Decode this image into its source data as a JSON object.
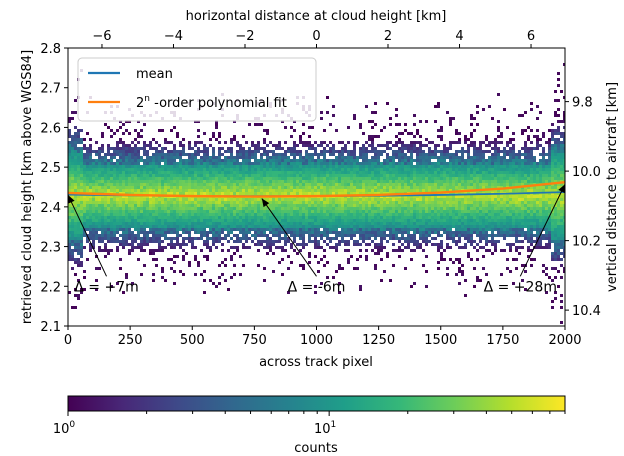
{
  "chart_data": {
    "type": "heatmap",
    "xlabel": "across track pixel",
    "ylabel": "retrieved cloud height [km above WGS84]",
    "top_xlabel": "horizontal distance at cloud height [km]",
    "right_ylabel": "vertical distance to aircraft [km]",
    "xlim": [
      0,
      2000
    ],
    "ylim": [
      2.1,
      2.8
    ],
    "top_xlim": [
      -6.95,
      6.95
    ],
    "x_ticks": [
      0,
      250,
      500,
      750,
      1000,
      1250,
      1500,
      1750,
      2000
    ],
    "y_ticks": [
      2.1,
      2.2,
      2.3,
      2.4,
      2.5,
      2.6,
      2.7,
      2.8
    ],
    "top_x_ticks": [
      -6,
      -4,
      -2,
      0,
      2,
      4,
      6
    ],
    "right_y_ticks": [
      "9.8",
      "10.0",
      "10.2",
      "10.4"
    ],
    "right_y_positions": [
      2.665,
      2.49,
      2.315,
      2.14
    ],
    "colorbar": {
      "label": "counts",
      "scale": "log",
      "range": [
        1,
        80
      ],
      "tick_labels": [
        {
          "text": "10",
          "exp": "0",
          "value": 1
        },
        {
          "text": "10",
          "exp": "1",
          "value": 10
        }
      ],
      "colors": [
        "#440154",
        "#482878",
        "#3e4a89",
        "#31688e",
        "#26828e",
        "#1f9e89",
        "#35b779",
        "#6dcd59",
        "#b4de2c",
        "#fde725"
      ]
    },
    "density": {
      "center_height": 2.428,
      "core_halfwidth": 0.08,
      "outer_halfwidth": 0.14
    },
    "series": [
      {
        "name": "mean",
        "color": "#1f77b4",
        "x": [
          0,
          250,
          500,
          750,
          1000,
          1250,
          1500,
          1750,
          2000
        ],
        "y": [
          2.431,
          2.429,
          2.427,
          2.427,
          2.427,
          2.428,
          2.43,
          2.433,
          2.437
        ]
      },
      {
        "name": "2n -order polynomial fit",
        "color": "#ff7f0e",
        "x": [
          0,
          250,
          500,
          750,
          1000,
          1250,
          1500,
          1750,
          2000
        ],
        "y": [
          2.435,
          2.43,
          2.427,
          2.426,
          2.427,
          2.43,
          2.436,
          2.446,
          2.462
        ]
      }
    ],
    "legend": {
      "placement": "top-left",
      "entries": [
        {
          "text": "mean",
          "sup": ""
        },
        {
          "text": "2",
          "sup": "n",
          "rest": " -order polynomial fit"
        }
      ]
    },
    "annotations": [
      {
        "text": "Δ = +7m",
        "arrow_from": [
          155,
          2.2
        ],
        "arrow_to": [
          0,
          2.435
        ]
      },
      {
        "text": "Δ = -6m",
        "arrow_from": [
          1000,
          2.2
        ],
        "arrow_to": [
          780,
          2.426
        ]
      },
      {
        "text": "Δ = +28m",
        "arrow_from": [
          1820,
          2.2
        ],
        "arrow_to": [
          2000,
          2.462
        ]
      }
    ]
  }
}
